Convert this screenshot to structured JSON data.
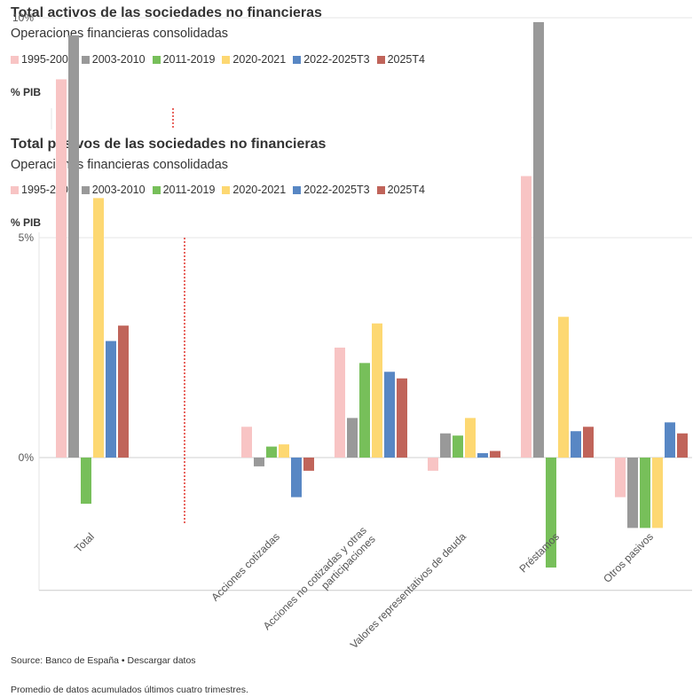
{
  "chart1": {
    "title": "Total activos de las sociedades no financieras",
    "subtitle": "Operaciones financieras consolidadas",
    "unit": "% PIB"
  },
  "legend": [
    {
      "label": "1995-2002",
      "color": "#f8c4c4"
    },
    {
      "label": "2003-2010",
      "color": "#999999"
    },
    {
      "label": "2011-2019",
      "color": "#77bf5a"
    },
    {
      "label": "2020-2021",
      "color": "#fdd872"
    },
    {
      "label": "2022-2025T3",
      "color": "#5887c4"
    },
    {
      "label": "2025T4",
      "color": "#c0645a"
    }
  ],
  "chart2": {
    "title": "Total pasivos de las sociedades no financieras",
    "subtitle": "Operaciones financieras consolidadas",
    "unit": "% PIB"
  },
  "chart_data": {
    "type": "bar",
    "title": "Total pasivos de las sociedades no financieras",
    "subtitle": "Operaciones financieras consolidadas",
    "ylabel": "% PIB",
    "ylim": [
      -3,
      10
    ],
    "yticks": [
      {
        "value": 10,
        "label": "10%"
      },
      {
        "value": 5,
        "label": "5%"
      },
      {
        "value": 0,
        "label": "0%"
      }
    ],
    "grid": true,
    "legend_position": "top",
    "categories": [
      "Total",
      "Acciones cotizadas",
      "Acciones no cotizadas y otras participaciones",
      "Valores representativos de deuda",
      "Préstamos",
      "Otros pasivos"
    ],
    "category_lines": [
      [
        "Total"
      ],
      [
        "Acciones cotizadas"
      ],
      [
        "Acciones no cotizadas y otras",
        "participaciones"
      ],
      [
        "Valores representativos de deuda"
      ],
      [
        "Préstamos"
      ],
      [
        "Otros pasivos"
      ]
    ],
    "series": [
      {
        "name": "1995-2002",
        "color": "#f8c4c4",
        "values": [
          8.6,
          0.7,
          2.5,
          -0.3,
          6.4,
          -0.9
        ]
      },
      {
        "name": "2003-2010",
        "color": "#999999",
        "values": [
          9.6,
          -0.2,
          0.9,
          0.55,
          9.9,
          -1.6
        ]
      },
      {
        "name": "2011-2019",
        "color": "#77bf5a",
        "values": [
          -1.05,
          0.25,
          2.15,
          0.5,
          -2.5,
          -1.6
        ]
      },
      {
        "name": "2020-2021",
        "color": "#fdd872",
        "values": [
          5.9,
          0.3,
          3.05,
          0.9,
          3.2,
          -1.6
        ]
      },
      {
        "name": "2022-2025T3",
        "color": "#5887c4",
        "values": [
          2.65,
          -0.9,
          1.95,
          0.1,
          0.6,
          0.8
        ]
      },
      {
        "name": "2025T4",
        "color": "#c0645a",
        "values": [
          3.0,
          -0.3,
          1.8,
          0.15,
          0.7,
          0.55
        ]
      }
    ]
  },
  "footer": {
    "source": "Source: Banco de España • Descargar datos",
    "note": "Promedio de datos acumulados últimos cuatro trimestres."
  }
}
